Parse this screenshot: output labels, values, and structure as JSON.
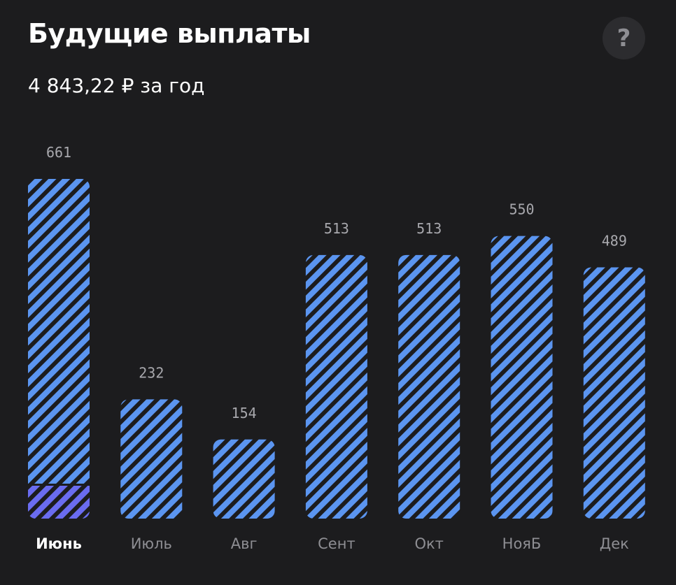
{
  "header": {
    "title": "Будущие выплаты",
    "subtitle": "4 843,22 ₽ за год",
    "help_label": "?"
  },
  "colors": {
    "background": "#1c1c1e",
    "bar": "#5b95f0",
    "bar_stripe": "#1c1c1e",
    "received": "#6a6cf0",
    "help_bg": "#2c2c2f"
  },
  "chart_data": {
    "type": "bar",
    "categories": [
      "Июнь",
      "Июль",
      "Авг",
      "Сент",
      "Окт",
      "НояБ",
      "Дек"
    ],
    "values": [
      661,
      232,
      154,
      513,
      513,
      550,
      489
    ],
    "value_labels": [
      "661",
      "232",
      "154",
      "513",
      "513",
      "550",
      "489"
    ],
    "received": [
      66,
      0,
      0,
      0,
      0,
      0,
      0
    ],
    "selected_index": 0,
    "ylim": [
      0,
      661
    ],
    "grid": false,
    "title": "",
    "xlabel": "",
    "ylabel": ""
  }
}
